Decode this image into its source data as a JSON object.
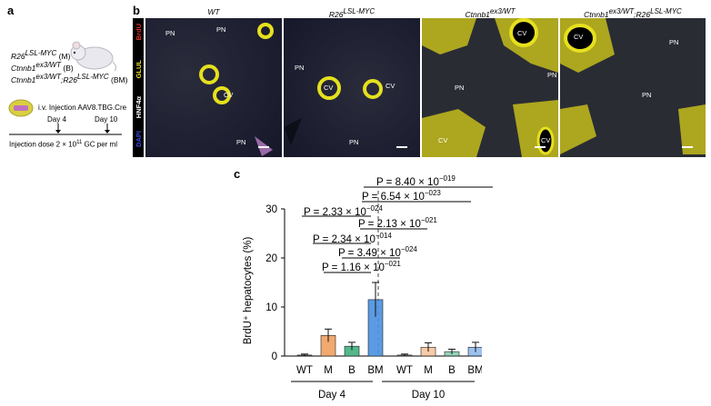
{
  "panel_a": {
    "letter": "a",
    "genotypes": [
      {
        "base": "R26",
        "sup": "LSL-MYC",
        "suffix": "(M)"
      },
      {
        "base": "Ctnnb1",
        "sup": "ex3/WT",
        "suffix": "(B)"
      },
      {
        "base": "Ctnnb1",
        "sup": "ex3/WT",
        "base2": ";R26",
        "sup2": "LSL-MYC",
        "suffix": "(BM)"
      }
    ],
    "injection_label": "i.v. Injection AAV8.TBG.Cre",
    "day4": "Day 4",
    "day10": "Day 10",
    "dose": "Injection dose 2 × 10",
    "dose_exp": "11",
    "dose_unit": "GC per ml"
  },
  "panel_b": {
    "letter": "b",
    "stain_labels": [
      "BrdU",
      "GLUL",
      "HNF4α",
      "DAPI"
    ],
    "stain_colors": [
      "#e0302a",
      "#e8e020",
      "#ffffff",
      "#3848e0"
    ],
    "images": [
      {
        "title": "WT",
        "labels": [
          "PN",
          "PN",
          "CV",
          "PN"
        ]
      },
      {
        "title": "R26",
        "title_sup": "LSL-MYC",
        "labels": [
          "PN",
          "CV",
          "CV",
          "PN"
        ]
      },
      {
        "title": "Ctnnb1",
        "title_sup": "ex3/WT",
        "labels": [
          "CV",
          "PN",
          "PN",
          "CV",
          "CV"
        ]
      },
      {
        "title": "Ctnnb1",
        "title_sup": "ex3/WT",
        "title2": ";R26",
        "title_sup2": "LSL-MYC",
        "labels": [
          "CV",
          "PN",
          "PN"
        ]
      }
    ]
  },
  "panel_c": {
    "letter": "c",
    "pvalues": [
      {
        "text": "P = 8.40 × 10",
        "exp": "−019"
      },
      {
        "text": "P = 6.54 × 10",
        "exp": "−023"
      },
      {
        "text": "P = 2.33 × 10",
        "exp": "−024"
      },
      {
        "text": "P = 2.13 × 10",
        "exp": "−021"
      },
      {
        "text": "P = 2.34 × 10",
        "exp": "−014"
      },
      {
        "text": "P = 3.49 × 10",
        "exp": "−024"
      },
      {
        "text": "P = 1.16 × 10",
        "exp": "−021"
      }
    ]
  },
  "chart_data": {
    "type": "bar",
    "ylabel": "BrdU⁺ hepatocytes (%)",
    "ylim": [
      0,
      30
    ],
    "yticks": [
      0,
      10,
      20,
      30
    ],
    "categories": [
      "WT",
      "M",
      "B",
      "BM",
      "WT",
      "M",
      "B",
      "BM"
    ],
    "groups": [
      "Day 4",
      "Day 10"
    ],
    "values": [
      0.2,
      4.2,
      2.0,
      11.5,
      0.2,
      1.8,
      0.9,
      1.8
    ],
    "errors": [
      0.2,
      1.3,
      0.8,
      3.5,
      0.2,
      0.9,
      0.5,
      1.0
    ],
    "colors": [
      "#444444",
      "#f0a060",
      "#40b080",
      "#4a90e0",
      "#444444",
      "#f0a060",
      "#40b080",
      "#4a90e0"
    ]
  }
}
